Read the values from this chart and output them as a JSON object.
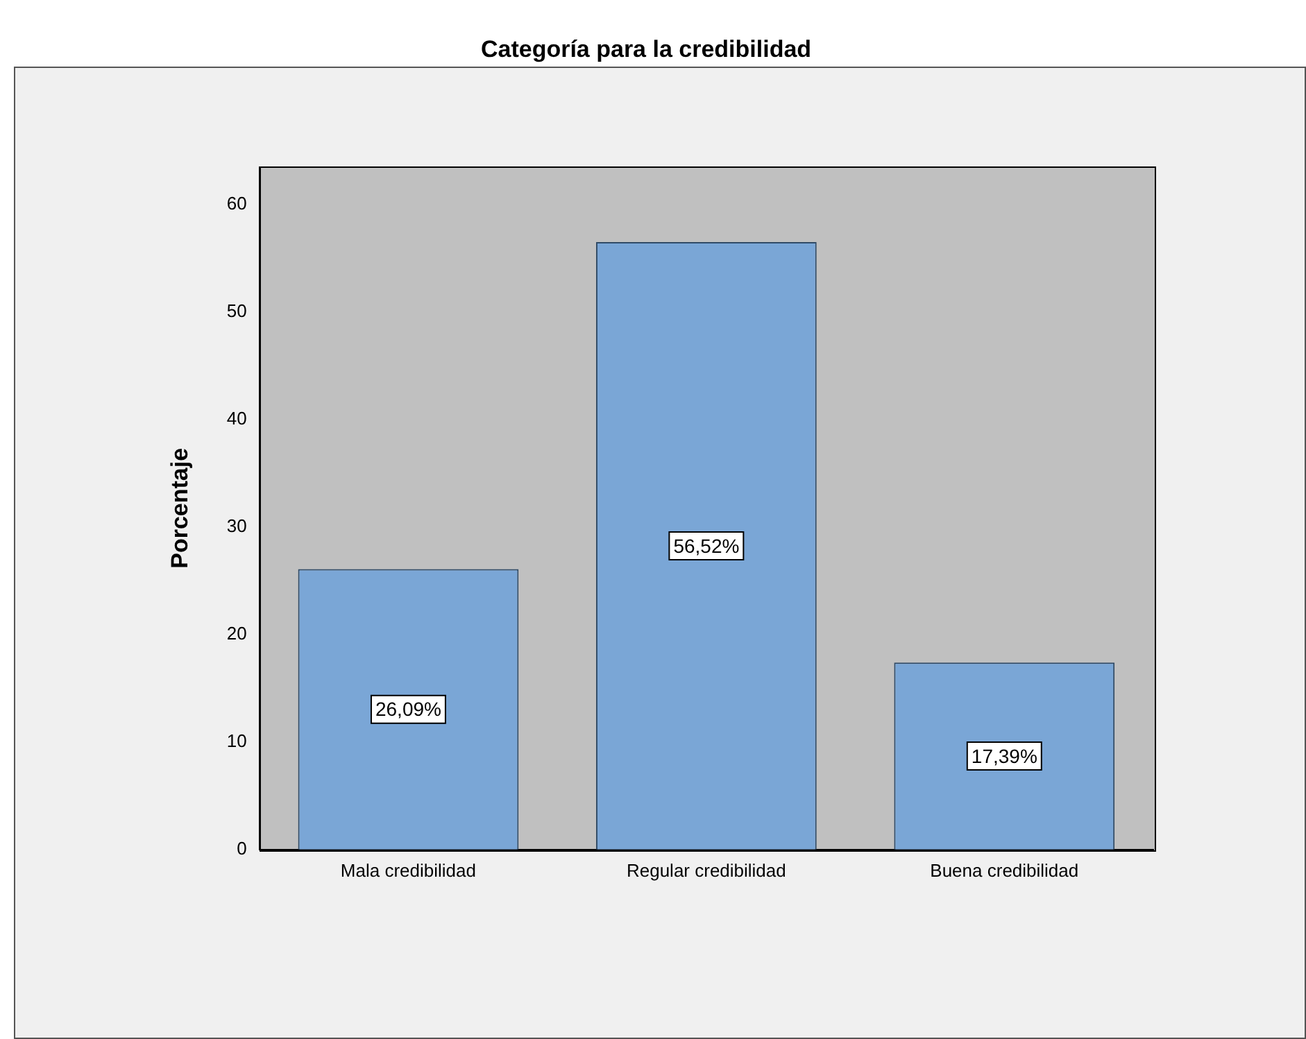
{
  "chart_data": {
    "type": "bar",
    "title": "Categoría para la credibilidad",
    "ylabel": "Porcentaje",
    "categories": [
      "Mala credibilidad",
      "Regular credibilidad",
      "Buena credibilidad"
    ],
    "values": [
      26.09,
      56.52,
      17.39
    ],
    "value_labels": [
      "26,09%",
      "56,52%",
      "17,39%"
    ],
    "color": "#7aa6d6",
    "ylim": [
      0,
      63.5
    ],
    "yticks": [
      0,
      10,
      20,
      30,
      40,
      50,
      60
    ],
    "legend": false
  }
}
